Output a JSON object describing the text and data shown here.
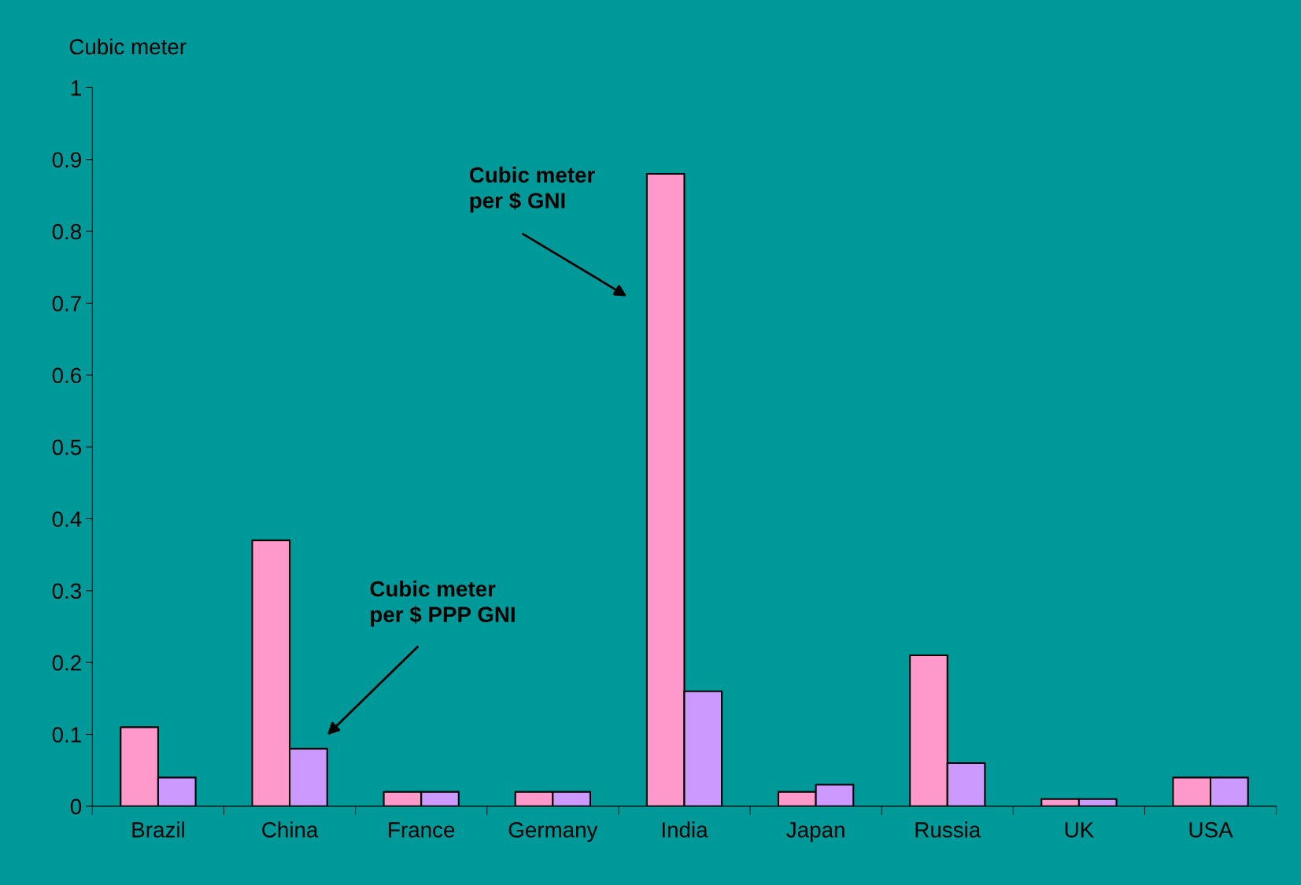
{
  "chart_data": {
    "type": "bar",
    "ylabel": "Cubic meter",
    "categories": [
      "Brazil",
      "China",
      "France",
      "Germany",
      "India",
      "Japan",
      "Russia",
      "UK",
      "USA"
    ],
    "series": [
      {
        "color": "#ff99cc",
        "values": [
          0.11,
          0.37,
          0.02,
          0.02,
          0.88,
          0.02,
          0.21,
          0.01,
          0.04
        ]
      },
      {
        "color": "#cc99ff",
        "values": [
          0.04,
          0.08,
          0.02,
          0.02,
          0.16,
          0.03,
          0.06,
          0.01,
          0.04
        ]
      }
    ],
    "ylim": [
      0,
      1
    ],
    "yticks": [
      0,
      0.1,
      0.2,
      0.3,
      0.4,
      0.5,
      0.6,
      0.7,
      0.8,
      0.9,
      1
    ],
    "grid": false,
    "legend": false,
    "annotations": [
      "Cubic meter\nper $ GNI",
      "Cubic meter\nper $ PPP GNI"
    ]
  }
}
